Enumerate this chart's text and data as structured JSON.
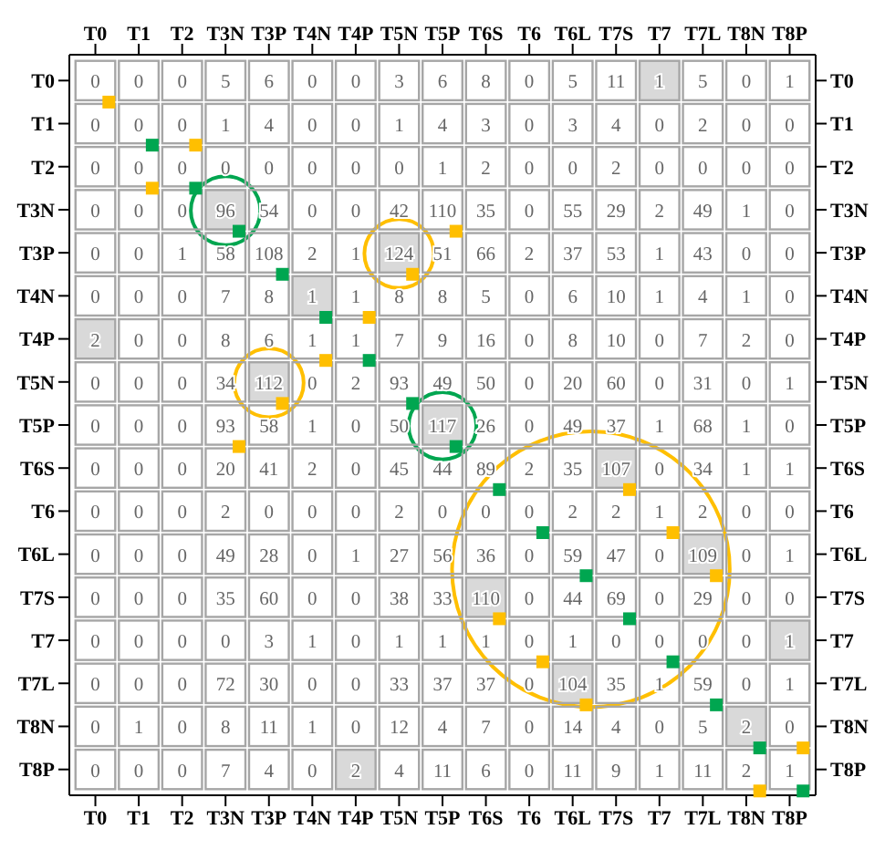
{
  "chart_data": {
    "type": "heatmap",
    "data_labels": true,
    "categories": [
      "T0",
      "T1",
      "T2",
      "T3N",
      "T3P",
      "T4N",
      "T4P",
      "T5N",
      "T5P",
      "T6S",
      "T6",
      "T6L",
      "T7S",
      "T7",
      "T7L",
      "T8N",
      "T8P"
    ],
    "y_categories": [
      "T0",
      "T1",
      "T2",
      "T3N",
      "T3P",
      "T4N",
      "T4P",
      "T5N",
      "T5P",
      "T6S",
      "T6",
      "T6L",
      "T7S",
      "T7",
      "T7L",
      "T8N",
      "T8P"
    ],
    "cells": [
      [
        0,
        0,
        0,
        5,
        6,
        0,
        0,
        3,
        6,
        8,
        0,
        5,
        11,
        1,
        5,
        0,
        1
      ],
      [
        0,
        0,
        0,
        1,
        4,
        0,
        0,
        1,
        4,
        3,
        0,
        3,
        4,
        0,
        2,
        0,
        0
      ],
      [
        0,
        0,
        0,
        0,
        0,
        0,
        0,
        0,
        1,
        2,
        0,
        0,
        2,
        0,
        0,
        0,
        0
      ],
      [
        0,
        0,
        0,
        96,
        54,
        0,
        0,
        42,
        110,
        35,
        0,
        55,
        29,
        2,
        49,
        1,
        0
      ],
      [
        0,
        0,
        1,
        58,
        108,
        2,
        1,
        124,
        51,
        66,
        2,
        37,
        53,
        1,
        43,
        0,
        0
      ],
      [
        0,
        0,
        0,
        7,
        8,
        1,
        1,
        8,
        8,
        5,
        0,
        6,
        10,
        1,
        4,
        1,
        0
      ],
      [
        2,
        0,
        0,
        8,
        6,
        1,
        1,
        7,
        9,
        16,
        0,
        8,
        10,
        0,
        7,
        2,
        0
      ],
      [
        0,
        0,
        0,
        34,
        112,
        0,
        2,
        93,
        49,
        50,
        0,
        20,
        60,
        0,
        31,
        0,
        1
      ],
      [
        0,
        0,
        0,
        93,
        58,
        1,
        0,
        50,
        117,
        26,
        0,
        49,
        37,
        1,
        68,
        1,
        0
      ],
      [
        0,
        0,
        0,
        20,
        41,
        2,
        0,
        45,
        44,
        89,
        2,
        35,
        107,
        0,
        34,
        1,
        1
      ],
      [
        0,
        0,
        0,
        2,
        0,
        0,
        0,
        2,
        0,
        0,
        0,
        2,
        2,
        1,
        2,
        0,
        0
      ],
      [
        0,
        0,
        0,
        49,
        28,
        0,
        1,
        27,
        56,
        36,
        0,
        59,
        47,
        0,
        109,
        0,
        1
      ],
      [
        0,
        0,
        0,
        35,
        60,
        0,
        0,
        38,
        33,
        110,
        0,
        44,
        69,
        0,
        29,
        0,
        0
      ],
      [
        0,
        0,
        0,
        0,
        3,
        1,
        0,
        1,
        1,
        1,
        0,
        1,
        0,
        0,
        0,
        0,
        1
      ],
      [
        0,
        0,
        0,
        72,
        30,
        0,
        0,
        33,
        37,
        37,
        0,
        104,
        35,
        1,
        59,
        0,
        1
      ],
      [
        0,
        1,
        0,
        8,
        11,
        1,
        0,
        12,
        4,
        7,
        0,
        14,
        4,
        0,
        5,
        2,
        0
      ],
      [
        0,
        0,
        0,
        7,
        4,
        0,
        2,
        4,
        11,
        6,
        0,
        11,
        9,
        1,
        11,
        2,
        1
      ]
    ]
  }
}
